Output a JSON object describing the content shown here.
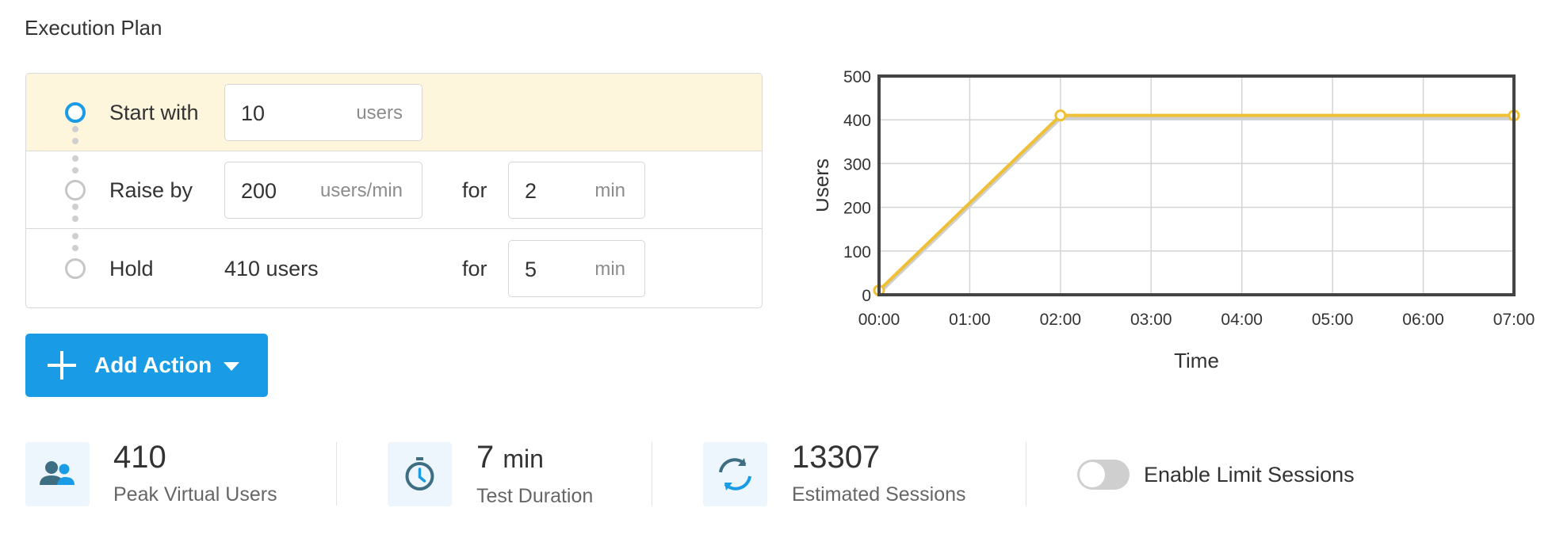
{
  "page": {
    "title": "Execution Plan"
  },
  "plan": {
    "steps": [
      {
        "label": "Start with",
        "value": "10",
        "unit": "users"
      },
      {
        "label": "Raise by",
        "value": "200",
        "unit": "users/min",
        "for_label": "for",
        "duration": "2",
        "duration_unit": "min"
      },
      {
        "label": "Hold",
        "static_value": "410 users",
        "for_label": "for",
        "duration": "5",
        "duration_unit": "min"
      }
    ]
  },
  "add_action": {
    "label": "Add Action"
  },
  "chart_data": {
    "type": "line",
    "xlabel": "Time",
    "ylabel": "Users",
    "x_ticks": [
      "00:00",
      "01:00",
      "02:00",
      "03:00",
      "04:00",
      "05:00",
      "06:00",
      "07:00"
    ],
    "y_ticks": [
      "0",
      "100",
      "200",
      "300",
      "400",
      "500"
    ],
    "ylim": [
      0,
      500
    ],
    "xlim_minutes": [
      0,
      7
    ],
    "grid": true,
    "series": [
      {
        "color": "#f0c034",
        "points": [
          {
            "x": "00:00",
            "y": 10
          },
          {
            "x": "02:00",
            "y": 410
          },
          {
            "x": "07:00",
            "y": 410
          }
        ]
      }
    ]
  },
  "stats": [
    {
      "value": "410",
      "label": "Peak Virtual Users",
      "icon": "users-icon"
    },
    {
      "value": "7",
      "unit": "min",
      "label": "Test Duration",
      "icon": "stopwatch-icon"
    },
    {
      "value": "13307",
      "label": "Estimated Sessions",
      "icon": "refresh-icon"
    }
  ],
  "limit_sessions": {
    "label": "Enable Limit Sessions",
    "enabled": false
  },
  "colors": {
    "accent": "#1a9be6",
    "line": "#f0c034",
    "highlight_row": "#fdf6dd",
    "icon_bg": "#edf6fd"
  }
}
